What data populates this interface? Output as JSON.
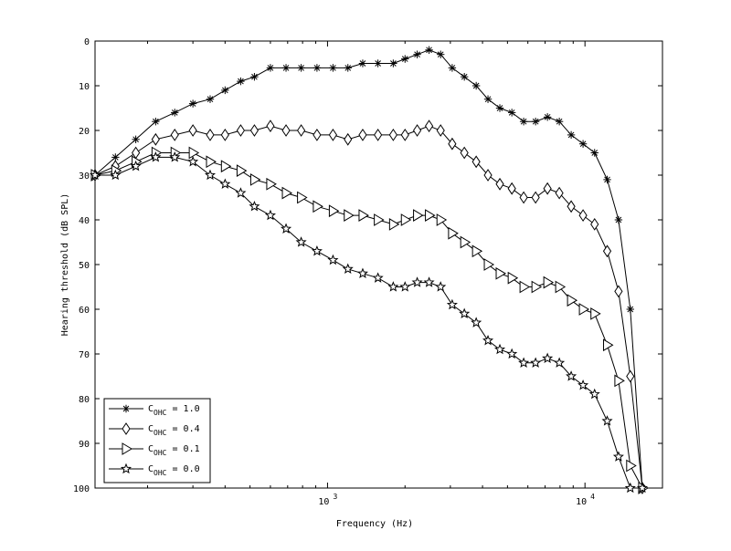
{
  "chart_data": {
    "type": "line",
    "title": "",
    "xlabel": "Frequency (Hz)",
    "ylabel": "Hearing threshold (dB SPL)",
    "xscale": "log",
    "xlim": [
      125,
      20000
    ],
    "ylim": [
      0,
      100
    ],
    "y_inverted": true,
    "xticks": [
      {
        "value": 1000,
        "base": "10",
        "exp": "3"
      },
      {
        "value": 10000,
        "base": "10",
        "exp": "4"
      }
    ],
    "yticks": [
      "0",
      "10",
      "20",
      "30",
      "40",
      "50",
      "60",
      "70",
      "80",
      "90",
      "100"
    ],
    "legend_position": "bottom-left",
    "series": [
      {
        "name": "C_OHC = 1.0",
        "label_main": "C",
        "label_sub": "OHC",
        "label_val": " = 1.0",
        "marker": "asterisk",
        "points": [
          [
            125,
            30
          ],
          [
            150,
            26
          ],
          [
            180,
            22
          ],
          [
            215,
            18
          ],
          [
            255,
            16
          ],
          [
            300,
            14
          ],
          [
            350,
            13
          ],
          [
            400,
            11
          ],
          [
            460,
            9
          ],
          [
            520,
            8
          ],
          [
            600,
            6
          ],
          [
            690,
            6
          ],
          [
            790,
            6
          ],
          [
            910,
            6
          ],
          [
            1050,
            6
          ],
          [
            1200,
            6
          ],
          [
            1370,
            5
          ],
          [
            1570,
            5
          ],
          [
            1800,
            5
          ],
          [
            2000,
            4
          ],
          [
            2230,
            3
          ],
          [
            2480,
            2
          ],
          [
            2750,
            3
          ],
          [
            3050,
            6
          ],
          [
            3400,
            8
          ],
          [
            3780,
            10
          ],
          [
            4200,
            13
          ],
          [
            4670,
            15
          ],
          [
            5200,
            16
          ],
          [
            5780,
            18
          ],
          [
            6430,
            18
          ],
          [
            7150,
            17
          ],
          [
            7950,
            18
          ],
          [
            8840,
            21
          ],
          [
            9830,
            23
          ],
          [
            10900,
            25
          ],
          [
            12200,
            31
          ],
          [
            13500,
            40
          ],
          [
            15000,
            60
          ],
          [
            16700,
            100
          ]
        ]
      },
      {
        "name": "C_OHC = 0.4",
        "label_main": "C",
        "label_sub": "OHC",
        "label_val": " = 0.4",
        "marker": "diamond",
        "points": [
          [
            125,
            30
          ],
          [
            150,
            28
          ],
          [
            180,
            25
          ],
          [
            215,
            22
          ],
          [
            255,
            21
          ],
          [
            300,
            20
          ],
          [
            350,
            21
          ],
          [
            400,
            21
          ],
          [
            460,
            20
          ],
          [
            520,
            20
          ],
          [
            600,
            19
          ],
          [
            690,
            20
          ],
          [
            790,
            20
          ],
          [
            910,
            21
          ],
          [
            1050,
            21
          ],
          [
            1200,
            22
          ],
          [
            1370,
            21
          ],
          [
            1570,
            21
          ],
          [
            1800,
            21
          ],
          [
            2000,
            21
          ],
          [
            2230,
            20
          ],
          [
            2480,
            19
          ],
          [
            2750,
            20
          ],
          [
            3050,
            23
          ],
          [
            3400,
            25
          ],
          [
            3780,
            27
          ],
          [
            4200,
            30
          ],
          [
            4670,
            32
          ],
          [
            5200,
            33
          ],
          [
            5780,
            35
          ],
          [
            6430,
            35
          ],
          [
            7150,
            33
          ],
          [
            7950,
            34
          ],
          [
            8840,
            37
          ],
          [
            9830,
            39
          ],
          [
            10900,
            41
          ],
          [
            12200,
            47
          ],
          [
            13500,
            56
          ],
          [
            15000,
            75
          ],
          [
            16700,
            100
          ]
        ]
      },
      {
        "name": "C_OHC = 0.1",
        "label_main": "C",
        "label_sub": "OHC",
        "label_val": " = 0.1",
        "marker": "triangle-right",
        "points": [
          [
            125,
            30
          ],
          [
            150,
            29
          ],
          [
            180,
            27
          ],
          [
            215,
            25
          ],
          [
            255,
            25
          ],
          [
            300,
            25
          ],
          [
            350,
            27
          ],
          [
            400,
            28
          ],
          [
            460,
            29
          ],
          [
            520,
            31
          ],
          [
            600,
            32
          ],
          [
            690,
            34
          ],
          [
            790,
            35
          ],
          [
            910,
            37
          ],
          [
            1050,
            38
          ],
          [
            1200,
            39
          ],
          [
            1370,
            39
          ],
          [
            1570,
            40
          ],
          [
            1800,
            41
          ],
          [
            2000,
            40
          ],
          [
            2230,
            39
          ],
          [
            2480,
            39
          ],
          [
            2750,
            40
          ],
          [
            3050,
            43
          ],
          [
            3400,
            45
          ],
          [
            3780,
            47
          ],
          [
            4200,
            50
          ],
          [
            4670,
            52
          ],
          [
            5200,
            53
          ],
          [
            5780,
            55
          ],
          [
            6430,
            55
          ],
          [
            7150,
            54
          ],
          [
            7950,
            55
          ],
          [
            8840,
            58
          ],
          [
            9830,
            60
          ],
          [
            10900,
            61
          ],
          [
            12200,
            68
          ],
          [
            13500,
            76
          ],
          [
            15000,
            95
          ],
          [
            16700,
            100
          ]
        ]
      },
      {
        "name": "C_OHC = 0.0",
        "label_main": "C",
        "label_sub": "OHC",
        "label_val": " = 0.0",
        "marker": "star",
        "points": [
          [
            125,
            30
          ],
          [
            150,
            30
          ],
          [
            180,
            28
          ],
          [
            215,
            26
          ],
          [
            255,
            26
          ],
          [
            300,
            27
          ],
          [
            350,
            30
          ],
          [
            400,
            32
          ],
          [
            460,
            34
          ],
          [
            520,
            37
          ],
          [
            600,
            39
          ],
          [
            690,
            42
          ],
          [
            790,
            45
          ],
          [
            910,
            47
          ],
          [
            1050,
            49
          ],
          [
            1200,
            51
          ],
          [
            1370,
            52
          ],
          [
            1570,
            53
          ],
          [
            1800,
            55
          ],
          [
            2000,
            55
          ],
          [
            2230,
            54
          ],
          [
            2480,
            54
          ],
          [
            2750,
            55
          ],
          [
            3050,
            59
          ],
          [
            3400,
            61
          ],
          [
            3780,
            63
          ],
          [
            4200,
            67
          ],
          [
            4670,
            69
          ],
          [
            5200,
            70
          ],
          [
            5780,
            72
          ],
          [
            6430,
            72
          ],
          [
            7150,
            71
          ],
          [
            7950,
            72
          ],
          [
            8840,
            75
          ],
          [
            9830,
            77
          ],
          [
            10900,
            79
          ],
          [
            12200,
            85
          ],
          [
            13500,
            93
          ],
          [
            15000,
            100
          ],
          [
            16700,
            100
          ]
        ]
      }
    ]
  }
}
